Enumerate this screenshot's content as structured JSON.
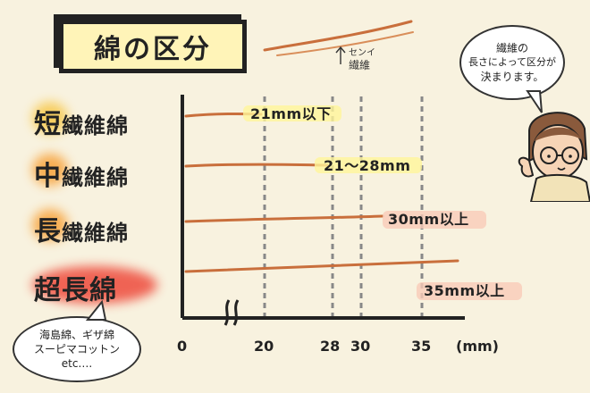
{
  "title": "綿の区分",
  "fiber_sample": {
    "reading": "センイ",
    "label": "繊維"
  },
  "categories": [
    {
      "head": "短",
      "rest": "繊維綿",
      "glow": "#f7c84a",
      "value_label": "21mm以下",
      "hl": "#fff59a"
    },
    {
      "head": "中",
      "rest": "繊維綿",
      "glow": "#f7a23a",
      "value_label": "21～28mm",
      "hl": "#fff59a"
    },
    {
      "head": "長",
      "rest": "繊維綿",
      "glow": "#f7a23a",
      "value_label": "30mm以上",
      "hl": "#f9cbb8"
    },
    {
      "head": "超長綿",
      "rest": "",
      "glow": "#ee4b3c",
      "value_label": "35mm以上",
      "hl": "#f9cbb8"
    }
  ],
  "bubble_right": {
    "line1": "繊維の",
    "line2": "長さによって区分が",
    "line3": "決まります。"
  },
  "bubble_left": {
    "line1": "海島綿、ギザ綿",
    "line2": "スーピマコットン",
    "line3": "etc…."
  },
  "axis": {
    "ticks": [
      "0",
      "20",
      "28",
      "30",
      "35"
    ],
    "unit": "(mm)",
    "break_marker": "≈"
  },
  "colors": {
    "fiber": "#c96f3c",
    "axis": "#222222",
    "background": "#f8f2df"
  }
}
